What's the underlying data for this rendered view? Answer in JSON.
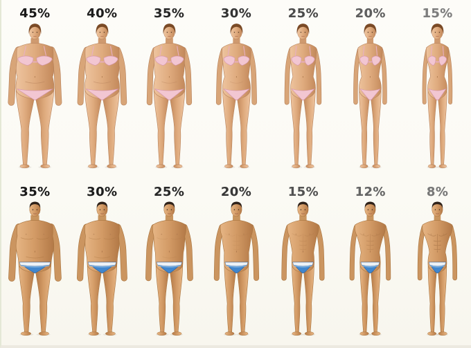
{
  "background": "#fbfaf4",
  "rows": [
    {
      "group": "women",
      "cells": [
        {
          "label": "45%",
          "percent": 45,
          "label_color": "#191919"
        },
        {
          "label": "40%",
          "percent": 40,
          "label_color": "#1e1e1e"
        },
        {
          "label": "35%",
          "percent": 35,
          "label_color": "#262626"
        },
        {
          "label": "30%",
          "percent": 30,
          "label_color": "#333333"
        },
        {
          "label": "25%",
          "percent": 25,
          "label_color": "#4a4a4a"
        },
        {
          "label": "20%",
          "percent": 20,
          "label_color": "#5e5e5e"
        },
        {
          "label": "15%",
          "percent": 15,
          "label_color": "#7d7d7d"
        }
      ]
    },
    {
      "group": "men",
      "cells": [
        {
          "label": "35%",
          "percent": 35,
          "label_color": "#191919"
        },
        {
          "label": "30%",
          "percent": 30,
          "label_color": "#1e1e1e"
        },
        {
          "label": "25%",
          "percent": 25,
          "label_color": "#282828"
        },
        {
          "label": "20%",
          "percent": 20,
          "label_color": "#383838"
        },
        {
          "label": "15%",
          "percent": 15,
          "label_color": "#525252"
        },
        {
          "label": "12%",
          "percent": 12,
          "label_color": "#646464"
        },
        {
          "label": "8%",
          "percent": 8,
          "label_color": "#787878"
        }
      ]
    }
  ],
  "figure_colors": {
    "women_skin_mid": "#dfab7e",
    "men_skin_mid": "#d29a65",
    "bikini_pink": "#f2c6d2",
    "briefs_blue": "#4186cd",
    "briefs_waistband": "#eef2f6",
    "hair_women": "#7a4a26",
    "hair_men": "#2f221a"
  }
}
